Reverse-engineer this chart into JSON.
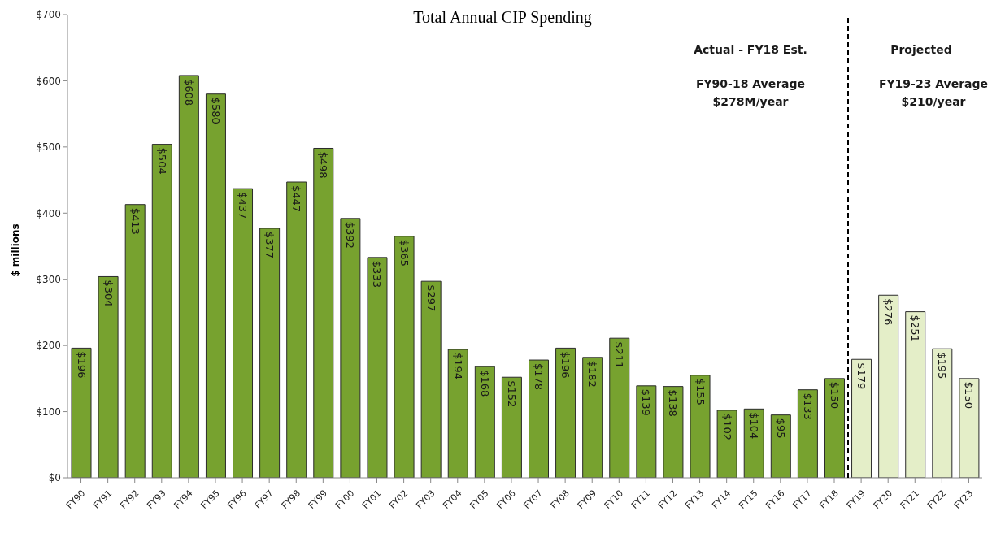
{
  "chart_data": {
    "type": "bar",
    "title": "Total Annual CIP Spending",
    "ylabel": "$ millions",
    "categories": [
      "FY90",
      "FY91",
      "FY92",
      "FY93",
      "FY94",
      "FY95",
      "FY96",
      "FY97",
      "FY98",
      "FY99",
      "FY00",
      "FY01",
      "FY02",
      "FY03",
      "FY04",
      "FY05",
      "FY06",
      "FY07",
      "FY08",
      "FY09",
      "FY10",
      "FY11",
      "FY12",
      "FY13",
      "FY14",
      "FY15",
      "FY16",
      "FY17",
      "FY18",
      "FY19",
      "FY20",
      "FY21",
      "FY22",
      "FY23"
    ],
    "values": [
      196,
      304,
      413,
      504,
      608,
      580,
      437,
      377,
      447,
      498,
      392,
      333,
      365,
      297,
      194,
      168,
      152,
      178,
      196,
      182,
      211,
      139,
      138,
      155,
      102,
      104,
      95,
      133,
      150,
      179,
      276,
      251,
      195,
      150
    ],
    "value_labels": [
      "$196",
      "$304",
      "$413",
      "$504",
      "$608",
      "$580",
      "$437",
      "$377",
      "$447",
      "$498",
      "$392",
      "$333",
      "$365",
      "$297",
      "$194",
      "$168",
      "$152",
      "$178",
      "$196",
      "$182",
      "$211",
      "$139",
      "$138",
      "$155",
      "$102",
      "$104",
      "$95",
      "$133",
      "$150",
      "$179",
      "$276",
      "$251",
      "$195",
      "$150"
    ],
    "colors": [
      "#77a22f",
      "#77a22f",
      "#77a22f",
      "#77a22f",
      "#77a22f",
      "#77a22f",
      "#77a22f",
      "#77a22f",
      "#77a22f",
      "#77a22f",
      "#77a22f",
      "#77a22f",
      "#77a22f",
      "#77a22f",
      "#77a22f",
      "#77a22f",
      "#77a22f",
      "#77a22f",
      "#77a22f",
      "#77a22f",
      "#77a22f",
      "#77a22f",
      "#77a22f",
      "#77a22f",
      "#77a22f",
      "#77a22f",
      "#77a22f",
      "#77a22f",
      "#77a22f",
      "#e4eec8",
      "#e4eec8",
      "#e4eec8",
      "#e4eec8",
      "#e4eec8"
    ],
    "ylim": [
      0,
      700
    ],
    "yticks": [
      {
        "value": 0,
        "label": "$0"
      },
      {
        "value": 100,
        "label": "$100"
      },
      {
        "value": 200,
        "label": "$200"
      },
      {
        "value": 300,
        "label": "$300"
      },
      {
        "value": 400,
        "label": "$400"
      },
      {
        "value": 500,
        "label": "$500"
      },
      {
        "value": 600,
        "label": "$600"
      },
      {
        "value": 700,
        "label": "$700"
      }
    ],
    "annotations": [
      "Actual - FY18 Est.",
      "FY90-18 Average\n$278M/year",
      "Projected",
      "FY19-23 Average\n$210/year"
    ],
    "grid": false
  }
}
